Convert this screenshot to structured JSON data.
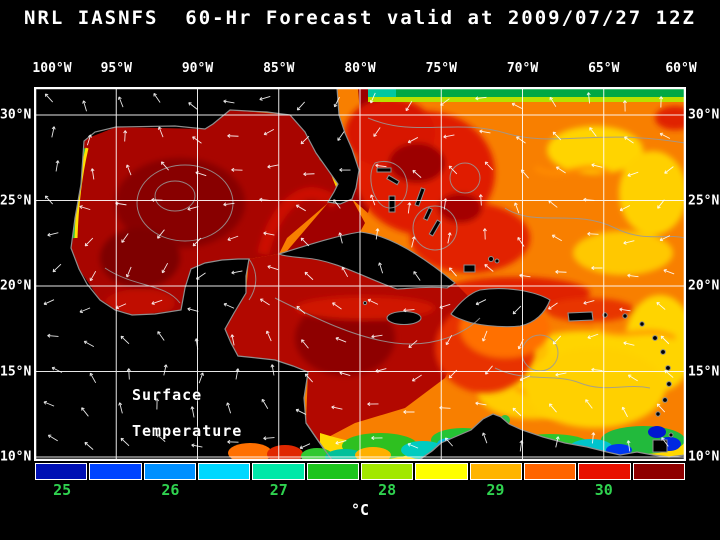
{
  "title": "NRL IASNFS  60-Hr Forecast valid at 2009/07/27 12Z",
  "axes": {
    "lon_ticks": [
      "100°W",
      "95°W",
      "90°W",
      "85°W",
      "80°W",
      "75°W",
      "70°W",
      "65°W",
      "60°W"
    ],
    "lat_ticks": [
      "30°N",
      "25°N",
      "20°N",
      "15°N",
      "10°N"
    ]
  },
  "overlay": {
    "line1": "Surface",
    "line2": "Temperature"
  },
  "colorbar": {
    "unit": "°C",
    "ticks": [
      "25",
      "26",
      "27",
      "28",
      "29",
      "30"
    ],
    "tick_positions_pct": [
      4.17,
      20.83,
      37.5,
      54.17,
      70.83,
      87.5
    ],
    "tick_color": "#2fd24f",
    "segments": [
      "#0010b4",
      "#0044ff",
      "#0090ff",
      "#00d8ff",
      "#00e8a8",
      "#1cc41c",
      "#a2e800",
      "#ffff00",
      "#ffb400",
      "#ff6400",
      "#e81000",
      "#8e0000"
    ]
  }
}
